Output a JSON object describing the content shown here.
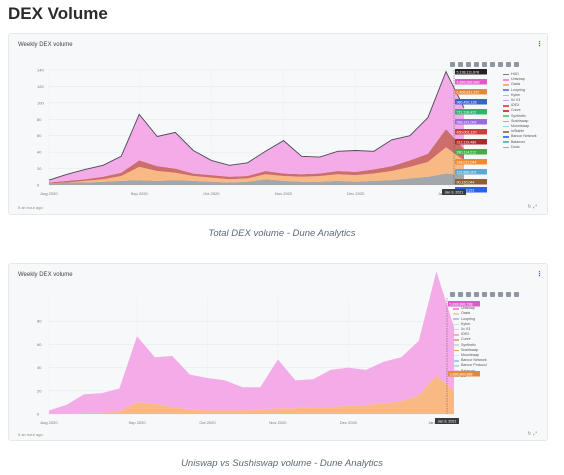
{
  "page": {
    "title": "DEX Volume"
  },
  "charts": [
    {
      "card_title": "Weekly DEX volume",
      "updated": "5 an hour ago",
      "caption": "Total DEX volume - Dune Analytics",
      "legend": [
        {
          "label": "HUD",
          "color": "#7c7c7c"
        },
        {
          "label": "Uniswap",
          "color": "#f58ee0"
        },
        {
          "label": "Oasis",
          "color": "#f3b17b"
        },
        {
          "label": "Loopring",
          "color": "#6f8fd8"
        },
        {
          "label": "Kyber",
          "color": "#7be3a7"
        },
        {
          "label": "0x V3",
          "color": "#c7a2f0"
        },
        {
          "label": "IDEX",
          "color": "#e25b5b"
        },
        {
          "label": "Curve",
          "color": "#c24a4a"
        },
        {
          "label": "Synthetix",
          "color": "#6dcf77"
        },
        {
          "label": "Sushiswap",
          "color": "#f59a4c"
        },
        {
          "label": "Mooniswap",
          "color": "#9fd0e9"
        },
        {
          "label": "mStable",
          "color": "#a67c52"
        },
        {
          "label": "Bancor Network",
          "color": "#3b82f6"
        },
        {
          "label": "Balancer",
          "color": "#5ac0c0"
        },
        {
          "label": "Dodo",
          "color": "#f27fb8"
        }
      ],
      "hover_values": [
        "5,138,111,678",
        "4,888,888,888",
        "1,456,811,222",
        "980,452,128",
        "711,118,413",
        "588,141,002",
        "450,001,120",
        "312,119,480",
        "280,114,212",
        "168,012,044",
        "122,889,301",
        "90,120,044",
        "44,018,221"
      ],
      "hover_date": "Jan 9, 2021",
      "chart_data": {
        "type": "area",
        "x": [
          "Aug 2020",
          "",
          "",
          "",
          "",
          "Sep 2020",
          "",
          "",
          "",
          "Oct 2020",
          "",
          "",
          "",
          "Nov 2020",
          "",
          "",
          "",
          "Dec 2020",
          "",
          "",
          "",
          "",
          "Jan 2021",
          ""
        ],
        "x_tick_labels": [
          "Aug 2020",
          "Sep 2020",
          "Oct 2020",
          "Nov 2020",
          "Dec 2020",
          "Jan 2021"
        ],
        "ylim": [
          0,
          140
        ],
        "y_ticks": [
          0,
          20,
          40,
          60,
          80,
          100,
          120,
          140
        ],
        "series": [
          {
            "name": "Others",
            "color": "#9b9ea4",
            "values": [
              2,
              3,
              3,
              4,
              5,
              6,
              5,
              6,
              5,
              4,
              3,
              4,
              7,
              5,
              4,
              4,
              5,
              4,
              5,
              6,
              8,
              10,
              14,
              12
            ]
          },
          {
            "name": "Sushiswap",
            "color": "#f8b37a",
            "values": [
              0,
              0,
              2,
              3,
              6,
              16,
              12,
              9,
              6,
              5,
              4,
              4,
              6,
              6,
              6,
              7,
              8,
              8,
              9,
              11,
              14,
              18,
              32,
              18
            ]
          },
          {
            "name": "Curve",
            "color": "#c9615f",
            "values": [
              1,
              2,
              2,
              3,
              4,
              8,
              6,
              5,
              3,
              3,
              3,
              3,
              4,
              3,
              3,
              3,
              4,
              4,
              5,
              6,
              8,
              10,
              22,
              14
            ]
          },
          {
            "name": "Uniswap",
            "color": "#f3a5e6",
            "values": [
              3,
              8,
              12,
              14,
              20,
              56,
              36,
              44,
              28,
              18,
              14,
              16,
              24,
              40,
              22,
              20,
              24,
              26,
              22,
              32,
              30,
              44,
              70,
              50
            ]
          }
        ]
      }
    },
    {
      "card_title": "Weekly DEX volume",
      "updated": "5 an hour ago",
      "caption": "Uniswap vs Sushiswap volume - Dune Analytics",
      "legend": [
        {
          "label": "HUD",
          "color": "#b6b6b6"
        },
        {
          "label": "Uniswap",
          "color": "#f58ee0"
        },
        {
          "label": "Oasis",
          "color": "#f3cfb1"
        },
        {
          "label": "Loopring",
          "color": "#b3c3ea"
        },
        {
          "label": "Kyber",
          "color": "#bdeed2"
        },
        {
          "label": "0x V3",
          "color": "#ddc8f5"
        },
        {
          "label": "IDEX",
          "color": "#efb1b1"
        },
        {
          "label": "Curve",
          "color": "#e0a9a8"
        },
        {
          "label": "Synthetix",
          "color": "#bce8c0"
        },
        {
          "label": "Sushiswap",
          "color": "#f59a4c"
        },
        {
          "label": "Mooniswap",
          "color": "#cde7f4"
        },
        {
          "label": "Bancor Network",
          "color": "#a9c7fa"
        },
        {
          "label": "Bancor Protocol",
          "color": "#b7dada"
        },
        {
          "label": "Balancer",
          "color": "#f7c3dd"
        },
        {
          "label": "DL",
          "color": "#c7c7c7"
        }
      ],
      "hover_values": [
        "5,888,888,788",
        "3,888,888,888"
      ],
      "hover_date": "Jan 9, 2021",
      "chart_data": {
        "type": "area",
        "x": [
          "Aug 2020",
          "",
          "",
          "",
          "",
          "Sep 2020",
          "",
          "",
          "",
          "Oct 2020",
          "",
          "",
          "",
          "Nov 2020",
          "",
          "",
          "",
          "Dec 2020",
          "",
          "",
          "",
          "",
          "Jan 2021",
          ""
        ],
        "x_tick_labels": [
          "Aug 2020",
          "Sep 2020",
          "Oct 2020",
          "Nov 2020",
          "Dec 2020",
          "Jan 2021"
        ],
        "ylim": [
          0,
          100
        ],
        "y_ticks": [
          0,
          20,
          40,
          60,
          80
        ],
        "series": [
          {
            "name": "Sushiswap",
            "color": "#f8b37a",
            "values": [
              0,
              0,
              1,
              1,
              2,
              10,
              9,
              6,
              4,
              3,
              3,
              3,
              4,
              5,
              5,
              6,
              6,
              7,
              8,
              9,
              11,
              16,
              33,
              20
            ]
          },
          {
            "name": "Uniswap",
            "color": "#f3a5e6",
            "values": [
              3,
              8,
              16,
              17,
              20,
              57,
              40,
              44,
              30,
              28,
              26,
              20,
              19,
              42,
              24,
              24,
              32,
              33,
              30,
              36,
              38,
              47,
              90,
              55
            ]
          }
        ]
      }
    }
  ]
}
